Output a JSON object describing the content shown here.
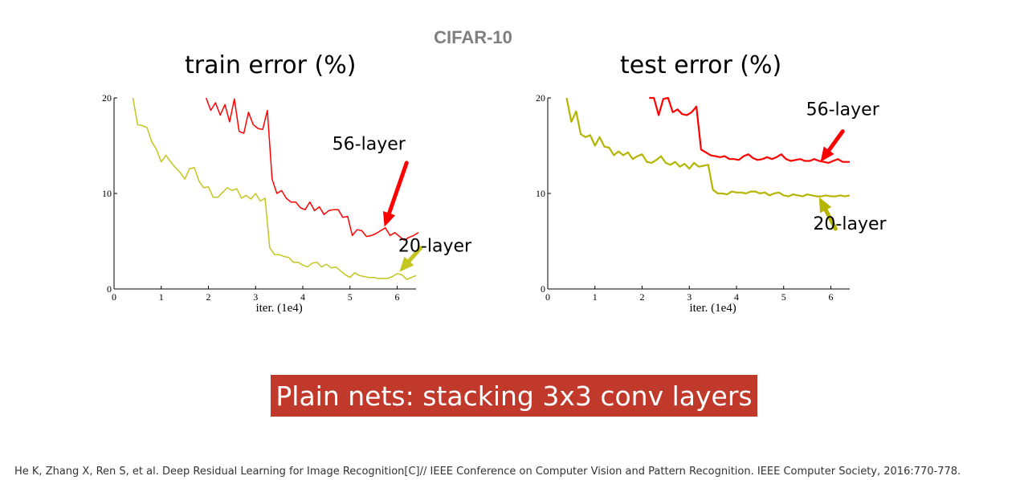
{
  "page": {
    "super_title": "CIFAR-10",
    "banner": "Plain nets: stacking 3x3 conv layers",
    "citation": "He K, Zhang X, Ren S, et al. Deep Residual Learning for Image Recognition[C]// IEEE Conference on Computer Vision and Pattern Recognition. IEEE Computer Society, 2016:770-778."
  },
  "chart_data": [
    {
      "id": "train",
      "type": "line",
      "title": "train error (%)",
      "xlabel": "iter. (1e4)",
      "ylabel": "",
      "xlim": [
        0,
        6.4
      ],
      "ylim": [
        0,
        20
      ],
      "xticks": [
        "0",
        "1",
        "2",
        "3",
        "4",
        "5",
        "6"
      ],
      "yticks": [
        "0",
        "10",
        "20"
      ],
      "grid": false,
      "series": [
        {
          "name": "56-layer",
          "color": "#ff0000",
          "x": [
            1.95,
            2.05,
            2.15,
            2.25,
            2.35,
            2.45,
            2.55,
            2.65,
            2.75,
            2.85,
            2.95,
            3.05,
            3.15,
            3.25,
            3.35,
            3.45,
            3.55,
            3.65,
            3.75,
            3.85,
            3.95,
            4.05,
            4.15,
            4.25,
            4.35,
            4.45,
            4.55,
            4.65,
            4.75,
            4.85,
            4.95,
            5.05,
            5.15,
            5.25,
            5.35,
            5.45,
            5.55,
            5.65,
            5.75,
            5.85,
            5.95,
            6.05,
            6.15,
            6.25,
            6.35,
            6.45
          ],
          "y": [
            20,
            18.7,
            19.5,
            18.2,
            19.3,
            17.5,
            19.9,
            16.5,
            16.3,
            18.5,
            17.2,
            16.8,
            16.7,
            18.7,
            11.5,
            10,
            10.3,
            9.5,
            9.1,
            9.1,
            8.5,
            8.3,
            9.1,
            8.2,
            8.6,
            7.8,
            8.2,
            8.3,
            8.3,
            7.5,
            7.6,
            5.6,
            6.2,
            6.1,
            5.5,
            5.6,
            5.8,
            6.1,
            6.4,
            5.6,
            5.9,
            5.5,
            5.1,
            5.4,
            5.6,
            5.9
          ]
        },
        {
          "name": "20-layer",
          "color": "#c5c520",
          "x": [
            0.4,
            0.5,
            0.6,
            0.7,
            0.8,
            0.9,
            1.0,
            1.1,
            1.2,
            1.3,
            1.4,
            1.5,
            1.6,
            1.7,
            1.8,
            1.9,
            2.0,
            2.1,
            2.2,
            2.3,
            2.4,
            2.5,
            2.6,
            2.7,
            2.8,
            2.9,
            3.0,
            3.1,
            3.2,
            3.3,
            3.4,
            3.5,
            3.6,
            3.7,
            3.8,
            3.9,
            4.0,
            4.1,
            4.2,
            4.3,
            4.4,
            4.5,
            4.6,
            4.7,
            4.8,
            4.9,
            5.0,
            5.1,
            5.2,
            5.3,
            5.4,
            5.5,
            5.6,
            5.7,
            5.8,
            5.9,
            6.0,
            6.1,
            6.2,
            6.3,
            6.4
          ],
          "y": [
            20,
            17.2,
            17.1,
            16.9,
            15.4,
            14.6,
            13.3,
            14.0,
            13.3,
            12.7,
            12.2,
            11.5,
            12.6,
            12.7,
            11.3,
            10.6,
            10.7,
            9.6,
            9.6,
            10.1,
            10.6,
            10.3,
            10.5,
            9.5,
            9.8,
            9.4,
            10.0,
            9.2,
            9.5,
            4.3,
            3.6,
            3.6,
            3.4,
            3.3,
            2.8,
            2.8,
            2.5,
            2.3,
            2.7,
            2.8,
            2.3,
            2.6,
            2.2,
            2.3,
            1.9,
            1.5,
            1.2,
            1.7,
            1.4,
            1.3,
            1.2,
            1.2,
            1.1,
            1.1,
            1.1,
            1.3,
            1.6,
            1.5,
            1.0,
            1.2,
            1.4
          ]
        }
      ],
      "annotations": [
        {
          "text": "56-layer",
          "color": "#ff0000",
          "label_x": 5.4,
          "label_y": 14.6,
          "tip_x": 5.73,
          "tip_y": 6.5,
          "tail_x": 6.2,
          "tail_y": 13.2
        },
        {
          "text": "20-layer",
          "color": "#c5c520",
          "label_x": 6.8,
          "label_y": 3.9,
          "tip_x": 6.05,
          "tip_y": 1.8,
          "tail_x": 6.5,
          "tail_y": 4.3
        }
      ]
    },
    {
      "id": "test",
      "type": "line",
      "title": "test error (%)",
      "xlabel": "iter. (1e4)",
      "ylabel": "",
      "xlim": [
        0,
        6.4
      ],
      "ylim": [
        0,
        20
      ],
      "xticks": [
        "0",
        "1",
        "2",
        "3",
        "4",
        "5",
        "6"
      ],
      "yticks": [
        "0",
        "10",
        "20"
      ],
      "grid": false,
      "series": [
        {
          "name": "56-layer",
          "color": "#ff0000",
          "x": [
            2.15,
            2.25,
            2.35,
            2.45,
            2.55,
            2.65,
            2.75,
            2.85,
            2.95,
            3.05,
            3.15,
            3.25,
            3.35,
            3.45,
            3.55,
            3.65,
            3.75,
            3.85,
            3.95,
            4.05,
            4.15,
            4.25,
            4.35,
            4.45,
            4.55,
            4.65,
            4.75,
            4.85,
            4.95,
            5.05,
            5.15,
            5.25,
            5.35,
            5.45,
            5.55,
            5.65,
            5.75,
            5.85,
            5.95,
            6.05,
            6.15,
            6.25,
            6.35,
            6.4
          ],
          "y": [
            20,
            20,
            18.2,
            19.9,
            20,
            18.5,
            18.8,
            18.3,
            18.2,
            18.5,
            19.1,
            14.6,
            14.3,
            14.0,
            13.9,
            13.8,
            13.9,
            13.6,
            13.6,
            13.5,
            13.9,
            14.1,
            13.7,
            13.5,
            13.6,
            13.8,
            13.6,
            13.8,
            14.1,
            13.6,
            13.4,
            13.5,
            13.6,
            13.4,
            13.4,
            13.6,
            13.4,
            13.3,
            13.2,
            13.4,
            13.6,
            13.3,
            13.3,
            13.3
          ]
        },
        {
          "name": "20-layer",
          "color": "#b5b500",
          "x": [
            0.4,
            0.5,
            0.6,
            0.7,
            0.8,
            0.9,
            1.0,
            1.1,
            1.2,
            1.3,
            1.4,
            1.5,
            1.6,
            1.7,
            1.8,
            1.9,
            2.0,
            2.1,
            2.2,
            2.3,
            2.4,
            2.5,
            2.6,
            2.7,
            2.8,
            2.9,
            3.0,
            3.1,
            3.2,
            3.3,
            3.4,
            3.5,
            3.6,
            3.7,
            3.8,
            3.9,
            4.0,
            4.1,
            4.2,
            4.3,
            4.4,
            4.5,
            4.6,
            4.7,
            4.8,
            4.9,
            5.0,
            5.1,
            5.2,
            5.3,
            5.4,
            5.5,
            5.6,
            5.7,
            5.8,
            5.9,
            6.0,
            6.1,
            6.2,
            6.3,
            6.4
          ],
          "y": [
            20,
            17.5,
            18.6,
            16.2,
            15.9,
            16.1,
            15.0,
            15.9,
            14.9,
            14.8,
            14.0,
            14.4,
            14.0,
            14.3,
            13.6,
            13.9,
            14.1,
            13.3,
            13.2,
            13.5,
            13.9,
            13.2,
            13.0,
            13.3,
            12.8,
            13.1,
            12.6,
            13.2,
            12.8,
            12.9,
            13.0,
            10.4,
            10.0,
            10.0,
            9.9,
            10.2,
            10.1,
            10.1,
            10.0,
            10.2,
            10.2,
            10.0,
            10.1,
            9.8,
            10.0,
            10.1,
            9.8,
            9.7,
            9.9,
            9.8,
            9.7,
            9.9,
            9.8,
            9.7,
            9.7,
            9.8,
            9.7,
            9.7,
            9.8,
            9.7,
            9.8
          ]
        }
      ],
      "annotations": [
        {
          "text": "56-layer",
          "color": "#ff0000",
          "label_x": 6.25,
          "label_y": 18.2,
          "tip_x": 5.78,
          "tip_y": 13.3,
          "tail_x": 6.25,
          "tail_y": 16.5
        },
        {
          "text": "20-layer",
          "color": "#b5b500",
          "label_x": 6.4,
          "label_y": 6.2,
          "tip_x": 5.75,
          "tip_y": 9.6,
          "tail_x": 6.1,
          "tail_y": 6.3
        }
      ]
    }
  ]
}
